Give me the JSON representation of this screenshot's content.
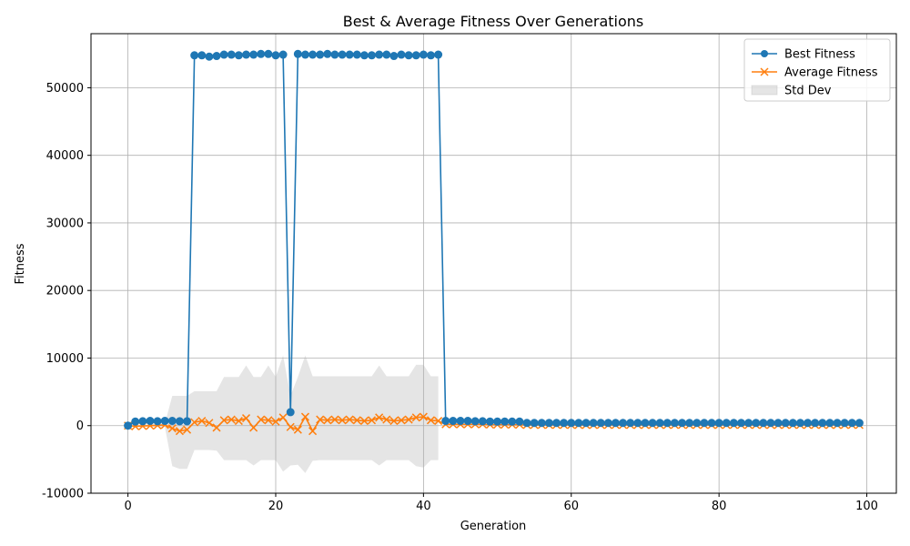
{
  "chart_data": {
    "type": "line",
    "title": "Best & Average Fitness Over Generations",
    "xlabel": "Generation",
    "ylabel": "Fitness",
    "xlim": [
      -5,
      104
    ],
    "ylim": [
      -10000,
      58000
    ],
    "xticks": [
      0,
      20,
      40,
      60,
      80,
      100
    ],
    "yticks": [
      -10000,
      0,
      10000,
      20000,
      30000,
      40000,
      50000
    ],
    "grid": true,
    "legend": "top-right",
    "series": [
      {
        "name": "Best Fitness",
        "color": "#1f77b4",
        "marker": "circle",
        "x": [
          0,
          1,
          2,
          3,
          4,
          5,
          6,
          7,
          8,
          9,
          10,
          11,
          12,
          13,
          14,
          15,
          16,
          17,
          18,
          19,
          20,
          21,
          22,
          23,
          24,
          25,
          26,
          27,
          28,
          29,
          30,
          31,
          32,
          33,
          34,
          35,
          36,
          37,
          38,
          39,
          40,
          41,
          42,
          43,
          44,
          45,
          46,
          47,
          48,
          49,
          50,
          51,
          52,
          53,
          54,
          55,
          56,
          57,
          58,
          59,
          60,
          61,
          62,
          63,
          64,
          65,
          66,
          67,
          68,
          69,
          70,
          71,
          72,
          73,
          74,
          75,
          76,
          77,
          78,
          79,
          80,
          81,
          82,
          83,
          84,
          85,
          86,
          87,
          88,
          89,
          90,
          91,
          92,
          93,
          94,
          95,
          96,
          97,
          98,
          99
        ],
        "values": [
          0,
          600,
          650,
          700,
          650,
          700,
          700,
          650,
          650,
          54800,
          54800,
          54600,
          54700,
          54900,
          54900,
          54800,
          54900,
          54900,
          55000,
          55000,
          54800,
          54900,
          2000,
          55000,
          54900,
          54900,
          54900,
          55000,
          54900,
          54900,
          54900,
          54900,
          54800,
          54800,
          54900,
          54900,
          54700,
          54900,
          54800,
          54800,
          54900,
          54800,
          54900,
          700,
          700,
          700,
          700,
          650,
          650,
          600,
          600,
          600,
          600,
          600,
          400,
          400,
          400,
          400,
          400,
          400,
          400,
          400,
          400,
          400,
          400,
          400,
          400,
          400,
          400,
          400,
          400,
          400,
          400,
          400,
          400,
          400,
          400,
          400,
          400,
          400,
          400,
          400,
          400,
          400,
          400,
          400,
          400,
          400,
          400,
          400,
          400,
          400,
          400,
          400,
          400,
          400,
          400,
          400,
          400,
          400
        ]
      },
      {
        "name": "Average Fitness",
        "color": "#ff7f0e",
        "marker": "x",
        "x": [
          0,
          1,
          2,
          3,
          4,
          5,
          6,
          7,
          8,
          9,
          10,
          11,
          12,
          13,
          14,
          15,
          16,
          17,
          18,
          19,
          20,
          21,
          22,
          23,
          24,
          25,
          26,
          27,
          28,
          29,
          30,
          31,
          32,
          33,
          34,
          35,
          36,
          37,
          38,
          39,
          40,
          41,
          42,
          43,
          44,
          45,
          46,
          47,
          48,
          49,
          50,
          51,
          52,
          53,
          54,
          55,
          56,
          57,
          58,
          59,
          60,
          61,
          62,
          63,
          64,
          65,
          66,
          67,
          68,
          69,
          70,
          71,
          72,
          73,
          74,
          75,
          76,
          77,
          78,
          79,
          80,
          81,
          82,
          83,
          84,
          85,
          86,
          87,
          88,
          89,
          90,
          91,
          92,
          93,
          94,
          95,
          96,
          97,
          98,
          99
        ],
        "values": [
          0,
          -100,
          -50,
          0,
          50,
          100,
          -400,
          -800,
          -600,
          500,
          700,
          400,
          -300,
          800,
          900,
          700,
          1100,
          -300,
          900,
          800,
          600,
          1200,
          -200,
          -600,
          1300,
          -800,
          900,
          800,
          900,
          800,
          900,
          800,
          700,
          800,
          1200,
          900,
          700,
          800,
          900,
          1200,
          1300,
          800,
          700,
          200,
          200,
          200,
          200,
          200,
          200,
          150,
          150,
          150,
          150,
          150,
          100,
          100,
          100,
          100,
          100,
          100,
          100,
          100,
          100,
          100,
          100,
          100,
          100,
          100,
          100,
          100,
          100,
          100,
          100,
          100,
          100,
          100,
          100,
          100,
          100,
          100,
          100,
          100,
          100,
          100,
          100,
          100,
          100,
          100,
          100,
          100,
          100,
          100,
          100,
          100,
          100,
          100,
          100,
          100,
          100,
          100
        ]
      },
      {
        "name": "Std Dev",
        "color": "#aaaaaa",
        "type": "band",
        "x": [
          0,
          1,
          2,
          3,
          4,
          5,
          6,
          7,
          8,
          9,
          10,
          11,
          12,
          13,
          14,
          15,
          16,
          17,
          18,
          19,
          20,
          21,
          22,
          23,
          24,
          25,
          26,
          27,
          28,
          29,
          30,
          31,
          32,
          33,
          34,
          35,
          36,
          37,
          38,
          39,
          40,
          41,
          42
        ],
        "upper": [
          0,
          100,
          150,
          200,
          250,
          300,
          4400,
          4400,
          4400,
          5100,
          5100,
          5100,
          5100,
          7200,
          7200,
          7200,
          8900,
          7200,
          7200,
          8900,
          7200,
          10400,
          4400,
          7200,
          10400,
          7300,
          7300,
          7300,
          7300,
          7300,
          7300,
          7300,
          7300,
          7300,
          8900,
          7300,
          7300,
          7300,
          7300,
          9000,
          9000,
          7300,
          7300
        ],
        "lower": [
          0,
          -200,
          -200,
          -150,
          -200,
          -200,
          -6000,
          -6400,
          -6400,
          -3600,
          -3600,
          -3600,
          -3700,
          -5100,
          -5100,
          -5100,
          -5100,
          -5900,
          -5100,
          -5100,
          -5100,
          -6800,
          -5900,
          -5800,
          -7000,
          -5200,
          -5100,
          -5100,
          -5100,
          -5100,
          -5100,
          -5100,
          -5100,
          -5100,
          -5900,
          -5100,
          -5100,
          -5100,
          -5100,
          -6000,
          -6200,
          -5100,
          -5100
        ]
      }
    ]
  }
}
